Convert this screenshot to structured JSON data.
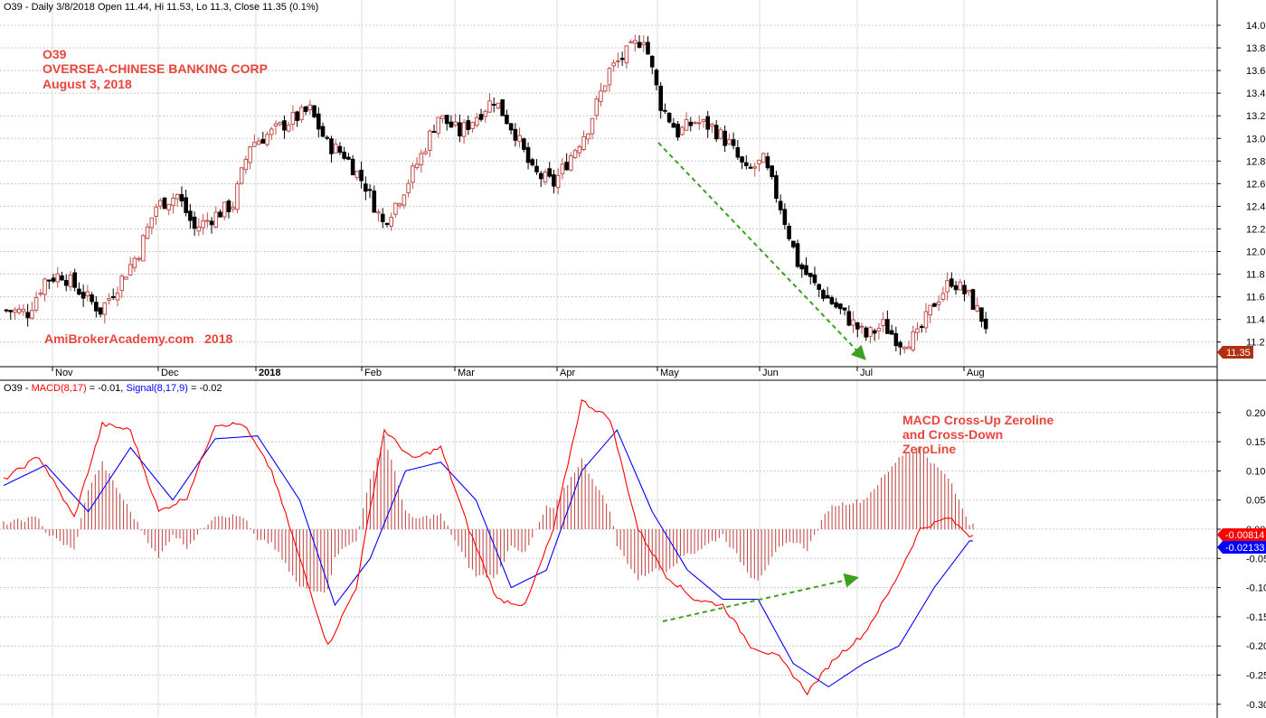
{
  "header": {
    "price_title": "O39 - Daily 3/8/2018 Open 11.44, Hi 11.53, Lo 11.3, Close 11.35 (0.1%)",
    "macd_prefix": "O39 - ",
    "macd_label": "MACD(8,17)",
    "macd_value": " = -0.01, ",
    "signal_label": "Signal(8,17,9)",
    "signal_value": " = -0.02"
  },
  "annotations": {
    "symbol": "O39",
    "company": "OVERSEA-CHINESE BANKING CORP",
    "date": "August 3, 2018",
    "watermark": "AmiBrokerAcademy.com   2018",
    "macd_note_1": "MACD Cross-Up Zeroline",
    "macd_note_2": "and Cross-Down",
    "macd_note_3": "ZeroLine"
  },
  "colors": {
    "up_candle": "#c0504d",
    "down_candle": "#000000",
    "macd_line": "#ff0000",
    "signal_line": "#0000ff",
    "histogram": "#c0504d",
    "trend_arrow": "#3ca020",
    "note_red": "#e8453c",
    "last_price_tag": "#b03010",
    "macd_tag": "#ff0000",
    "signal_tag": "#0000ff"
  },
  "chart_data": [
    {
      "type": "candlestick",
      "title": "O39 - Daily 3/8/2018 Open 11.44, Hi 11.53, Lo 11.3, Close 11.35 (0.1%)",
      "y_ticks": [
        "14.0",
        "13.8",
        "13.6",
        "13.4",
        "13.2",
        "13.0",
        "12.8",
        "12.6",
        "12.4",
        "12.2",
        "12.0",
        "11.8",
        "11.6",
        "11.4",
        "11.2"
      ],
      "ylim": [
        11.0,
        14.15
      ],
      "x_months": [
        "Nov",
        "Dec",
        "2018",
        "Feb",
        "Mar",
        "Apr",
        "May",
        "Jun",
        "Jul",
        "Aug"
      ],
      "last_price_label": "11.35",
      "close_path": [
        [
          0,
          11.48
        ],
        [
          5,
          11.46
        ],
        [
          9,
          11.75
        ],
        [
          13,
          11.8
        ],
        [
          18,
          11.62
        ],
        [
          22,
          11.48
        ],
        [
          26,
          11.7
        ],
        [
          31,
          12.0
        ],
        [
          35,
          12.4
        ],
        [
          40,
          12.5
        ],
        [
          44,
          12.2
        ],
        [
          48,
          12.3
        ],
        [
          53,
          12.42
        ],
        [
          57,
          12.95
        ],
        [
          62,
          13.05
        ],
        [
          66,
          13.15
        ],
        [
          71,
          13.25
        ],
        [
          75,
          12.95
        ],
        [
          79,
          12.86
        ],
        [
          84,
          12.58
        ],
        [
          88,
          12.25
        ],
        [
          92,
          12.48
        ],
        [
          97,
          12.85
        ],
        [
          101,
          13.2
        ],
        [
          106,
          13.05
        ],
        [
          110,
          13.2
        ],
        [
          114,
          13.35
        ],
        [
          119,
          13.05
        ],
        [
          123,
          12.7
        ],
        [
          128,
          12.6
        ],
        [
          132,
          12.85
        ],
        [
          136,
          13.1
        ],
        [
          141,
          13.6
        ],
        [
          145,
          13.75
        ],
        [
          149,
          13.9
        ],
        [
          153,
          13.3
        ],
        [
          157,
          13.05
        ],
        [
          161,
          13.15
        ],
        [
          165,
          13.1
        ],
        [
          169,
          12.95
        ],
        [
          173,
          12.7
        ],
        [
          177,
          12.8
        ],
        [
          181,
          12.4
        ],
        [
          185,
          11.9
        ],
        [
          189,
          11.7
        ],
        [
          193,
          11.55
        ],
        [
          197,
          11.4
        ],
        [
          201,
          11.25
        ],
        [
          205,
          11.35
        ],
        [
          209,
          11.2
        ],
        [
          213,
          11.25
        ],
        [
          217,
          11.55
        ],
        [
          221,
          11.75
        ],
        [
          225,
          11.6
        ],
        [
          229,
          11.35
        ]
      ]
    },
    {
      "type": "macd",
      "title": "O39 - MACD(8,17) = -0.01, Signal(8,17,9) = -0.02",
      "series": [
        {
          "name": "MACD(8,17)"
        },
        {
          "name": "Signal(8,17,9)"
        }
      ],
      "y_ticks": [
        "0.20",
        "0.15",
        "0.10",
        "0.05",
        "0.00",
        "-0.05",
        "-0.10",
        "-0.15",
        "-0.20",
        "-0.25",
        "-0.30"
      ],
      "ylim": [
        -0.31,
        0.23
      ],
      "macd_label": "-0.00814",
      "signal_label": "-0.02133",
      "macd_path": [
        [
          0,
          0.085
        ],
        [
          10,
          0.125
        ],
        [
          20,
          0.02
        ],
        [
          28,
          0.18
        ],
        [
          36,
          0.17
        ],
        [
          44,
          0.03
        ],
        [
          52,
          0.055
        ],
        [
          60,
          0.18
        ],
        [
          68,
          0.18
        ],
        [
          76,
          0.1
        ],
        [
          84,
          -0.05
        ],
        [
          92,
          -0.2
        ],
        [
          100,
          -0.1
        ],
        [
          108,
          0.17
        ],
        [
          116,
          0.12
        ],
        [
          124,
          0.14
        ],
        [
          132,
          0.0
        ],
        [
          140,
          -0.12
        ],
        [
          148,
          -0.13
        ],
        [
          156,
          0.0
        ],
        [
          164,
          0.22
        ],
        [
          172,
          0.19
        ],
        [
          180,
          0.0
        ],
        [
          188,
          -0.08
        ],
        [
          196,
          -0.12
        ],
        [
          204,
          -0.13
        ],
        [
          212,
          -0.2
        ],
        [
          220,
          -0.22
        ],
        [
          228,
          -0.28
        ],
        [
          236,
          -0.22
        ],
        [
          244,
          -0.18
        ],
        [
          252,
          -0.1
        ],
        [
          260,
          0.0
        ],
        [
          268,
          0.02
        ],
        [
          274,
          -0.01
        ]
      ],
      "signal_path": [
        [
          0,
          0.075
        ],
        [
          12,
          0.11
        ],
        [
          24,
          0.03
        ],
        [
          36,
          0.14
        ],
        [
          48,
          0.05
        ],
        [
          60,
          0.155
        ],
        [
          72,
          0.16
        ],
        [
          84,
          0.05
        ],
        [
          94,
          -0.13
        ],
        [
          104,
          -0.05
        ],
        [
          114,
          0.1
        ],
        [
          124,
          0.115
        ],
        [
          134,
          0.05
        ],
        [
          144,
          -0.1
        ],
        [
          154,
          -0.07
        ],
        [
          164,
          0.1
        ],
        [
          174,
          0.17
        ],
        [
          184,
          0.03
        ],
        [
          194,
          -0.07
        ],
        [
          204,
          -0.12
        ],
        [
          214,
          -0.12
        ],
        [
          224,
          -0.23
        ],
        [
          234,
          -0.27
        ],
        [
          244,
          -0.23
        ],
        [
          254,
          -0.2
        ],
        [
          264,
          -0.1
        ],
        [
          274,
          -0.02
        ]
      ]
    }
  ]
}
